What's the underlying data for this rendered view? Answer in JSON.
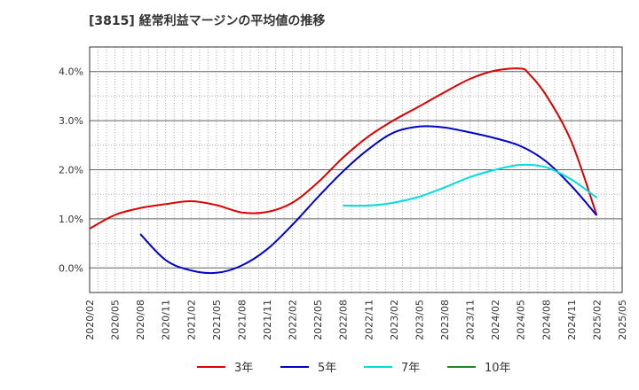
{
  "chart_data": {
    "type": "line",
    "title": "[3815]  経常利益マージンの平均値の推移",
    "xlabel": "",
    "ylabel": "",
    "ylim": [
      -0.5,
      4.5
    ],
    "yticks": [
      0.0,
      1.0,
      2.0,
      3.0,
      4.0
    ],
    "ytick_labels": [
      "0.0%",
      "1.0%",
      "2.0%",
      "3.0%",
      "4.0%"
    ],
    "xlim": [
      "2020/02",
      "2025/05"
    ],
    "xtick_labels": [
      "2020/02",
      "2020/05",
      "2020/08",
      "2020/11",
      "2021/02",
      "2021/05",
      "2021/08",
      "2021/11",
      "2022/02",
      "2022/05",
      "2022/08",
      "2022/11",
      "2023/02",
      "2023/05",
      "2023/08",
      "2023/11",
      "2024/02",
      "2024/05",
      "2024/08",
      "2024/11",
      "2025/02",
      "2025/05"
    ],
    "grid": true,
    "legend_position": "bottom",
    "series": [
      {
        "name": "3年",
        "color": "#dd0000",
        "x": [
          "2020/02",
          "2020/05",
          "2020/08",
          "2020/11",
          "2021/02",
          "2021/05",
          "2021/08",
          "2021/11",
          "2022/02",
          "2022/05",
          "2022/08",
          "2022/11",
          "2023/02",
          "2023/05",
          "2023/08",
          "2023/11",
          "2024/02",
          "2024/05",
          "2024/06",
          "2024/08",
          "2024/11",
          "2025/02"
        ],
        "values": [
          0.8,
          1.08,
          1.22,
          1.3,
          1.36,
          1.28,
          1.13,
          1.14,
          1.33,
          1.74,
          2.25,
          2.68,
          3.01,
          3.29,
          3.58,
          3.85,
          4.02,
          4.06,
          3.95,
          3.52,
          2.57,
          1.07
        ]
      },
      {
        "name": "5年",
        "color": "#0000cc",
        "x": [
          "2020/08",
          "2020/11",
          "2021/02",
          "2021/05",
          "2021/08",
          "2021/11",
          "2022/02",
          "2022/05",
          "2022/08",
          "2022/11",
          "2023/02",
          "2023/05",
          "2023/08",
          "2023/11",
          "2024/02",
          "2024/05",
          "2024/08",
          "2024/11",
          "2025/02"
        ],
        "values": [
          0.69,
          0.16,
          -0.05,
          -0.1,
          0.05,
          0.38,
          0.88,
          1.44,
          1.97,
          2.42,
          2.76,
          2.88,
          2.86,
          2.76,
          2.64,
          2.48,
          2.17,
          1.67,
          1.07
        ]
      },
      {
        "name": "7年",
        "color": "#00dddd",
        "x": [
          "2022/08",
          "2022/11",
          "2023/02",
          "2023/05",
          "2023/08",
          "2023/11",
          "2024/02",
          "2024/05",
          "2024/08",
          "2024/11",
          "2025/02"
        ],
        "values": [
          1.27,
          1.27,
          1.33,
          1.45,
          1.64,
          1.85,
          2.0,
          2.1,
          2.05,
          1.8,
          1.43
        ]
      },
      {
        "name": "10年",
        "color": "#228822",
        "x": [],
        "values": []
      }
    ]
  }
}
